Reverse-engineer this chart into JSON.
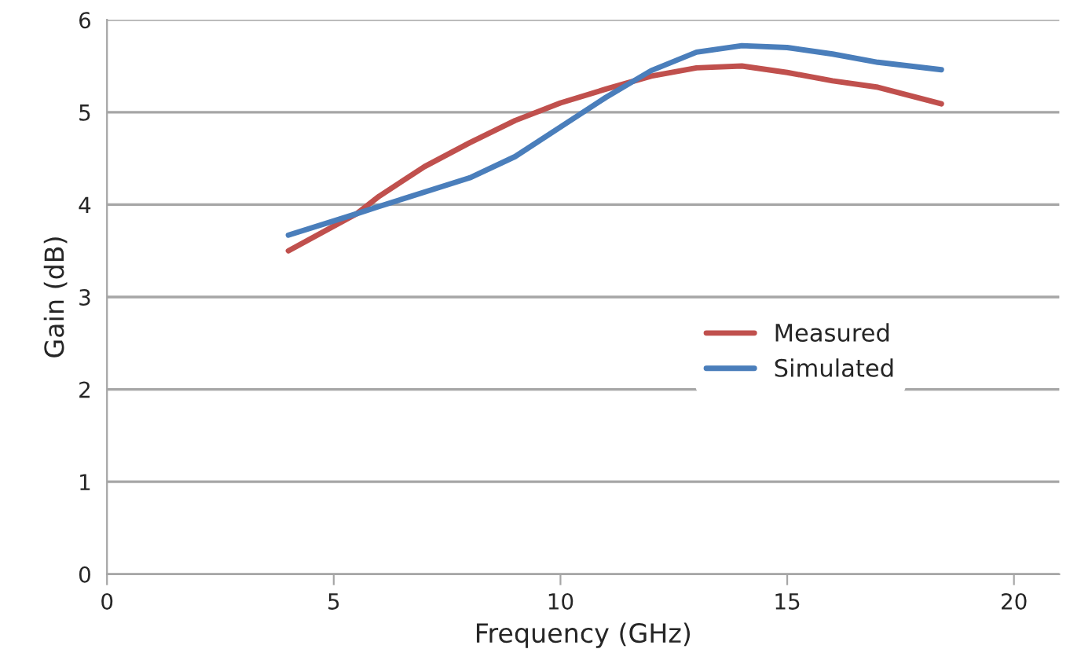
{
  "chart_data": {
    "type": "line",
    "xlabel": "Frequency (GHz)",
    "ylabel": "Gain (dB)",
    "xlim": [
      0,
      21
    ],
    "xticks": [
      0,
      5,
      10,
      15,
      20
    ],
    "ylim": [
      0,
      6
    ],
    "yticks": [
      0,
      1,
      2,
      3,
      4,
      5,
      6
    ],
    "grid": "y",
    "legend": "right",
    "line_style": "solid",
    "marker": "none",
    "series": [
      {
        "name": "Measured",
        "color": "#c0504d",
        "x": [
          4,
          5.5,
          6,
          7,
          8,
          9,
          10,
          11,
          12,
          13,
          14,
          15,
          16,
          17,
          18.4
        ],
        "values": [
          3.5,
          3.9,
          4.09,
          4.41,
          4.67,
          4.91,
          5.1,
          5.25,
          5.39,
          5.48,
          5.5,
          5.43,
          5.34,
          5.27,
          5.09
        ]
      },
      {
        "name": "Simulated",
        "color": "#4a7ebb",
        "x": [
          4,
          5.5,
          6,
          8,
          9,
          10,
          11,
          12,
          13,
          14,
          15,
          16,
          17,
          18.4
        ],
        "values": [
          3.67,
          3.9,
          3.98,
          4.29,
          4.52,
          4.84,
          5.16,
          5.45,
          5.65,
          5.72,
          5.7,
          5.63,
          5.54,
          5.46
        ]
      }
    ]
  }
}
